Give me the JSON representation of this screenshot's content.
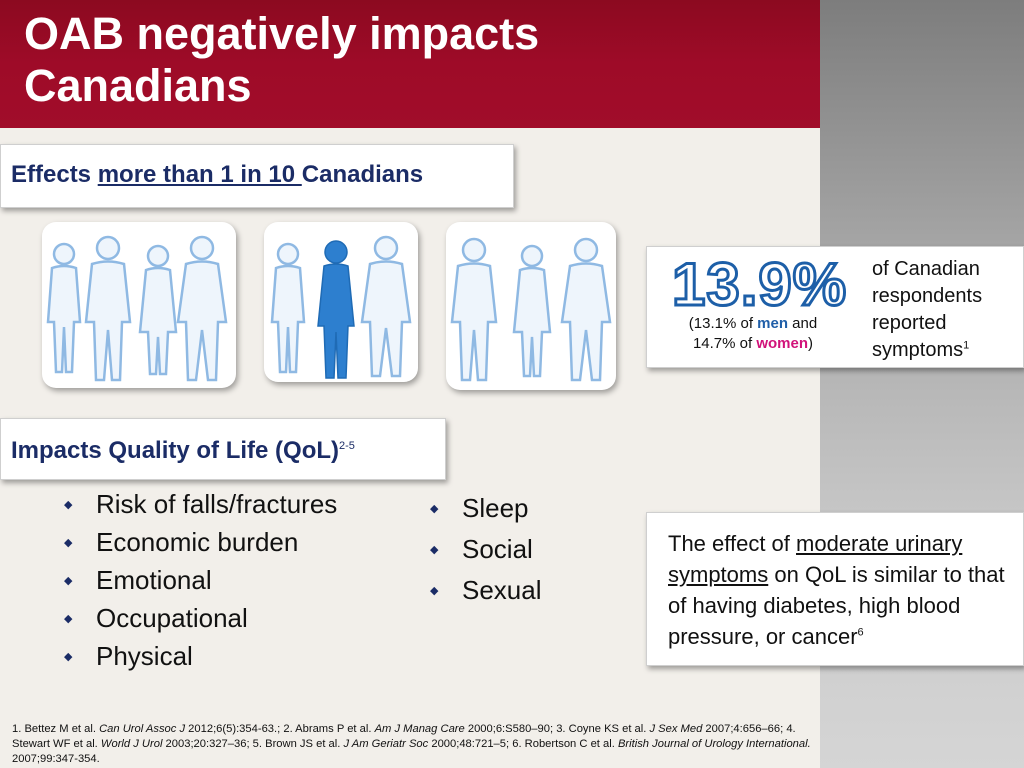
{
  "title": {
    "line1": "OAB negatively impacts",
    "line2": "Canadians"
  },
  "effects": {
    "prefix": "Effects ",
    "underlined": "more than 1 in 10 ",
    "suffix": "Canadians"
  },
  "stat": {
    "percent": "13.9%",
    "sub_open": "(13.1% of ",
    "men": "men",
    "sub_and": " and",
    "sub_line2_start": "14.7% of ",
    "women": "women",
    "sub_close": ")",
    "text_lines": [
      "of Canadian",
      "respondents",
      "reported"
    ],
    "text_last": "symptoms",
    "text_sup": "1"
  },
  "qol": {
    "label": "Impacts Quality of Life (QoL)",
    "sup": "2-5"
  },
  "bullets_left": [
    "Risk of falls/fractures",
    "Economic burden",
    "Emotional",
    "Occupational",
    "Physical"
  ],
  "bullets_right": [
    "Sleep",
    "Social",
    "Sexual"
  ],
  "bullet_icon": "diamond-bullet-icon",
  "effect_box": {
    "prefix": "The effect of ",
    "underlined": "moderate urinary symptoms",
    "suffix": " on QoL is similar to that of having diabetes, high blood pressure, or cancer",
    "sup": "6"
  },
  "references": [
    {
      "pre": "1. Bettez M et al. ",
      "journal": "Can Urol Assoc J",
      "post": " 2012;6(5):354-63.; "
    },
    {
      "pre": "2. Abrams P et al. ",
      "journal": "Am J Manag Care",
      "post": " 2000;6:S580–90; "
    },
    {
      "pre": "3. Coyne KS et al. ",
      "journal": "J Sex Med",
      "post": " 2007;4:656–66; "
    },
    {
      "pre": "4. Stewart WF et al. ",
      "journal": "World J Urol",
      "post": " 2003;20:327–36; "
    },
    {
      "pre": "5. Brown JS et al. ",
      "journal": "J Am Geriatr Soc",
      "post": " 2000;48:721–5; "
    },
    {
      "pre": "6. Robertson C et al. ",
      "journal": "British Journal of Urology International.",
      "post": " 2007;99:347-354."
    }
  ],
  "colors": {
    "title_bg": "#9e0b28",
    "heading": "#1b2c66",
    "stat_outline": "#1d5fa8",
    "men": "#1f5ea8",
    "women": "#d1127a"
  },
  "photos": [
    "people-group-photo-1",
    "people-group-photo-2-highlighted",
    "people-group-photo-3"
  ]
}
